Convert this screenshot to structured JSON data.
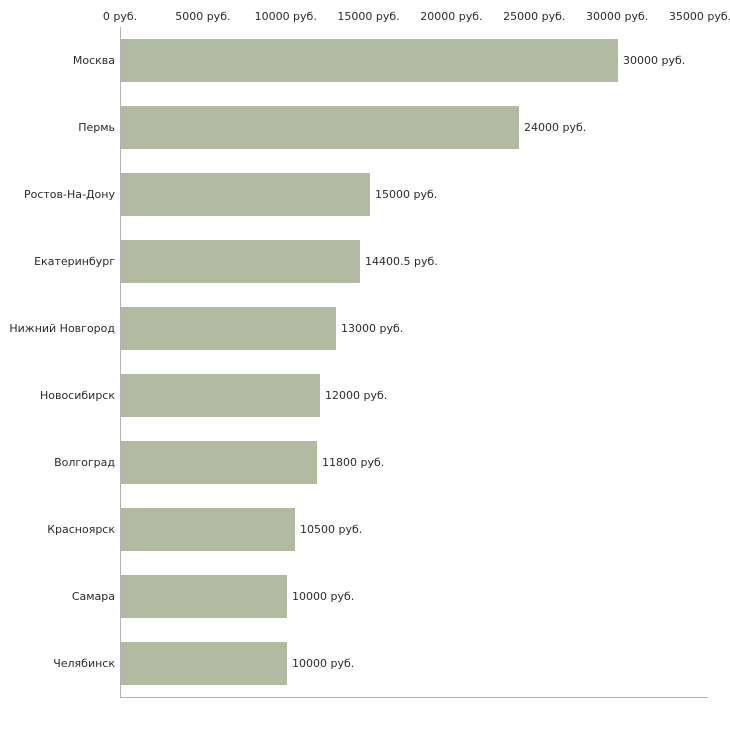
{
  "chart_data": {
    "type": "bar",
    "orientation": "horizontal",
    "title": "",
    "xlabel": "",
    "ylabel": "",
    "categories": [
      "Москва",
      "Пермь",
      "Ростов-На-Дону",
      "Екатеринбург",
      "Нижний Новгород",
      "Новосибирск",
      "Волгоград",
      "Красноярск",
      "Самара",
      "Челябинск"
    ],
    "values": [
      30000,
      24000,
      15000,
      14400.5,
      13000,
      12000,
      11800,
      10500,
      10000,
      10000
    ],
    "value_labels": [
      "30000 руб.",
      "24000 руб.",
      "15000 руб.",
      "14400.5 руб.",
      "13000 руб.",
      "12000 руб.",
      "11800 руб.",
      "10500 руб.",
      "10000 руб.",
      "10000 руб."
    ],
    "x_ticks": [
      "0 руб.",
      "5000 руб.",
      "10000 руб.",
      "15000 руб.",
      "20000 руб.",
      "25000 руб.",
      "30000 руб.",
      "35000 руб."
    ],
    "x_tick_values": [
      0,
      5000,
      10000,
      15000,
      20000,
      25000,
      30000,
      35000
    ],
    "xlim": [
      0,
      35000
    ],
    "grid": false,
    "legend": false,
    "axis_position": "top",
    "bar_color": "#b2bba1",
    "axis_color": "#b3b3b3",
    "text_color": "#2b2b2b",
    "background_color": "#ffffff"
  }
}
